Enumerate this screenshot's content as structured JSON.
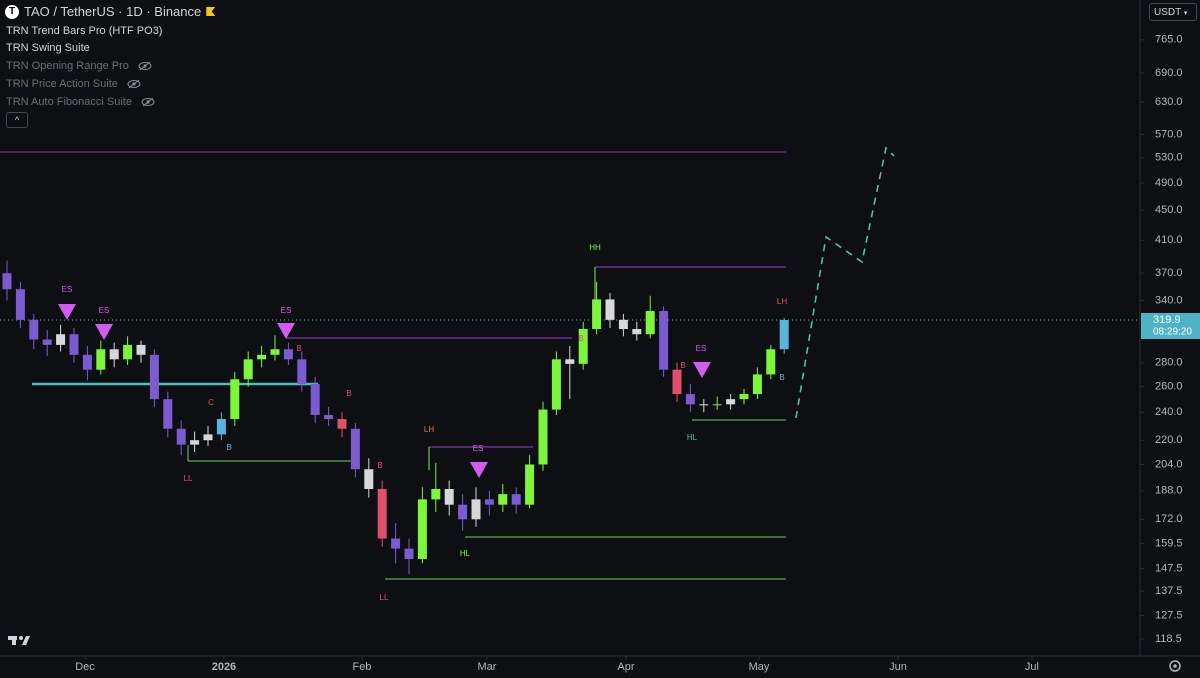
{
  "header": {
    "symbol": "TAO / TetherUS · 1D · Binance"
  },
  "indicators": [
    "TRN Trend Bars Pro (HTF PO3)",
    "TRN Swing Suite",
    "TRN Opening Range Pro",
    "TRN Price Action Suite",
    "TRN Auto Fibonacci Suite"
  ],
  "currency": "USDT",
  "countdown": "08:29:20",
  "chart_data": {
    "type": "candlestick",
    "log_scale": true,
    "open": [
      370,
      352,
      320,
      301,
      296,
      306,
      287,
      274,
      292,
      283,
      296,
      287,
      250,
      228,
      217,
      220,
      224,
      235,
      266,
      283,
      287,
      292,
      283,
      262,
      238,
      235,
      228,
      201,
      189,
      162,
      157,
      152,
      183,
      189,
      180,
      172,
      183,
      180,
      186,
      180,
      204,
      242,
      283,
      279,
      311,
      341,
      320,
      311,
      306,
      329,
      274,
      254,
      246,
      246,
      246,
      250,
      254,
      270,
      292
    ],
    "high": [
      385,
      360,
      326,
      310,
      315,
      312,
      295,
      300,
      298,
      304,
      300,
      292,
      256,
      234,
      226,
      230,
      240,
      272,
      290,
      295,
      305,
      298,
      290,
      268,
      244,
      240,
      232,
      208,
      194,
      170,
      162,
      190,
      205,
      194,
      186,
      190,
      188,
      192,
      190,
      210,
      248,
      290,
      295,
      318,
      360,
      348,
      326,
      318,
      345,
      334,
      280,
      262,
      250,
      252,
      254,
      258,
      276,
      296,
      322
    ],
    "low": [
      340,
      312,
      292,
      286,
      290,
      280,
      265,
      270,
      276,
      278,
      280,
      244,
      222,
      210,
      212,
      216,
      220,
      230,
      260,
      276,
      282,
      278,
      256,
      232,
      230,
      222,
      196,
      184,
      158,
      150,
      145,
      150,
      176,
      174,
      166,
      168,
      174,
      176,
      175,
      178,
      200,
      238,
      250,
      274,
      306,
      312,
      304,
      300,
      302,
      268,
      248,
      240,
      240,
      242,
      242,
      246,
      250,
      266,
      288
    ],
    "close": [
      352,
      320,
      301,
      296,
      306,
      287,
      274,
      292,
      283,
      296,
      287,
      250,
      228,
      217,
      220,
      224,
      235,
      266,
      283,
      287,
      292,
      283,
      262,
      238,
      235,
      228,
      201,
      189,
      162,
      157,
      152,
      183,
      189,
      180,
      172,
      183,
      180,
      186,
      180,
      204,
      242,
      283,
      279,
      311,
      341,
      320,
      311,
      306,
      329,
      274,
      254,
      246,
      246,
      246,
      250,
      254,
      270,
      292,
      319.9
    ],
    "colors": [
      "#7a5bd0",
      "#7a5bd0",
      "#7a5bd0",
      "#7a5bd0",
      "#d8d8d8",
      "#7a5bd0",
      "#7a5bd0",
      "#7df53a",
      "#d8d8d8",
      "#7df53a",
      "#d8d8d8",
      "#7a5bd0",
      "#7a5bd0",
      "#7a5bd0",
      "#d8d8d8",
      "#d8d8d8",
      "#5ab4dc",
      "#7df53a",
      "#7df53a",
      "#7df53a",
      "#7df53a",
      "#7a5bd0",
      "#7a5bd0",
      "#7a5bd0",
      "#7a5bd0",
      "#e0506a",
      "#7a5bd0",
      "#d8d8d8",
      "#e0506a",
      "#7a5bd0",
      "#7a5bd0",
      "#7df53a",
      "#7df53a",
      "#d8d8d8",
      "#7a5bd0",
      "#d8d8d8",
      "#7a5bd0",
      "#7df53a",
      "#7a5bd0",
      "#7df53a",
      "#7df53a",
      "#7df53a",
      "#d8d8d8",
      "#7df53a",
      "#7df53a",
      "#d8d8d8",
      "#d8d8d8",
      "#d8d8d8",
      "#7df53a",
      "#7a5bd0",
      "#e0506a",
      "#7a5bd0",
      "#d8d8d8",
      "#7df53a",
      "#d8d8d8",
      "#7df53a",
      "#7df53a",
      "#7df53a",
      "#5ab4dc"
    ],
    "ylim": [
      111,
      866
    ],
    "yticks": [
      {
        "value": 765,
        "label": "765.0"
      },
      {
        "value": 690,
        "label": "690.0"
      },
      {
        "value": 630,
        "label": "630.0"
      },
      {
        "value": 570,
        "label": "570.0"
      },
      {
        "value": 530,
        "label": "530.0"
      },
      {
        "value": 490,
        "label": "490.0"
      },
      {
        "value": 450,
        "label": "450.0"
      },
      {
        "value": 410,
        "label": "410.0"
      },
      {
        "value": 370,
        "label": "370.0"
      },
      {
        "value": 340,
        "label": "340.0"
      },
      {
        "value": 280,
        "label": "280.0"
      },
      {
        "value": 260,
        "label": "260.0"
      },
      {
        "value": 240,
        "label": "240.0"
      },
      {
        "value": 220,
        "label": "220.0"
      },
      {
        "value": 204,
        "label": "204.0"
      },
      {
        "value": 188,
        "label": "188.0"
      },
      {
        "value": 172,
        "label": "172.0"
      },
      159.5,
      147.5,
      137.5,
      127.5,
      118.5
    ],
    "xticks": [
      {
        "value": 5.82,
        "label": "Dec"
      },
      {
        "value": 16.19,
        "label": "2026"
      },
      {
        "value": 26.49,
        "label": "Feb"
      },
      {
        "value": 35.82,
        "label": "Mar"
      },
      {
        "value": 46.19,
        "label": "Apr"
      },
      {
        "value": 56.12,
        "label": "May"
      },
      {
        "value": 66.49,
        "label": "Jun"
      },
      {
        "value": 76.49,
        "label": "Jul"
      }
    ],
    "annotations": [
      "ES",
      "ES",
      "ES",
      "ES",
      "ES",
      "LL",
      "LL",
      "HH",
      "LH",
      "LH",
      "HL",
      "HL",
      "B",
      "C",
      "B",
      "B",
      "B",
      "B",
      "B",
      "B"
    ]
  }
}
